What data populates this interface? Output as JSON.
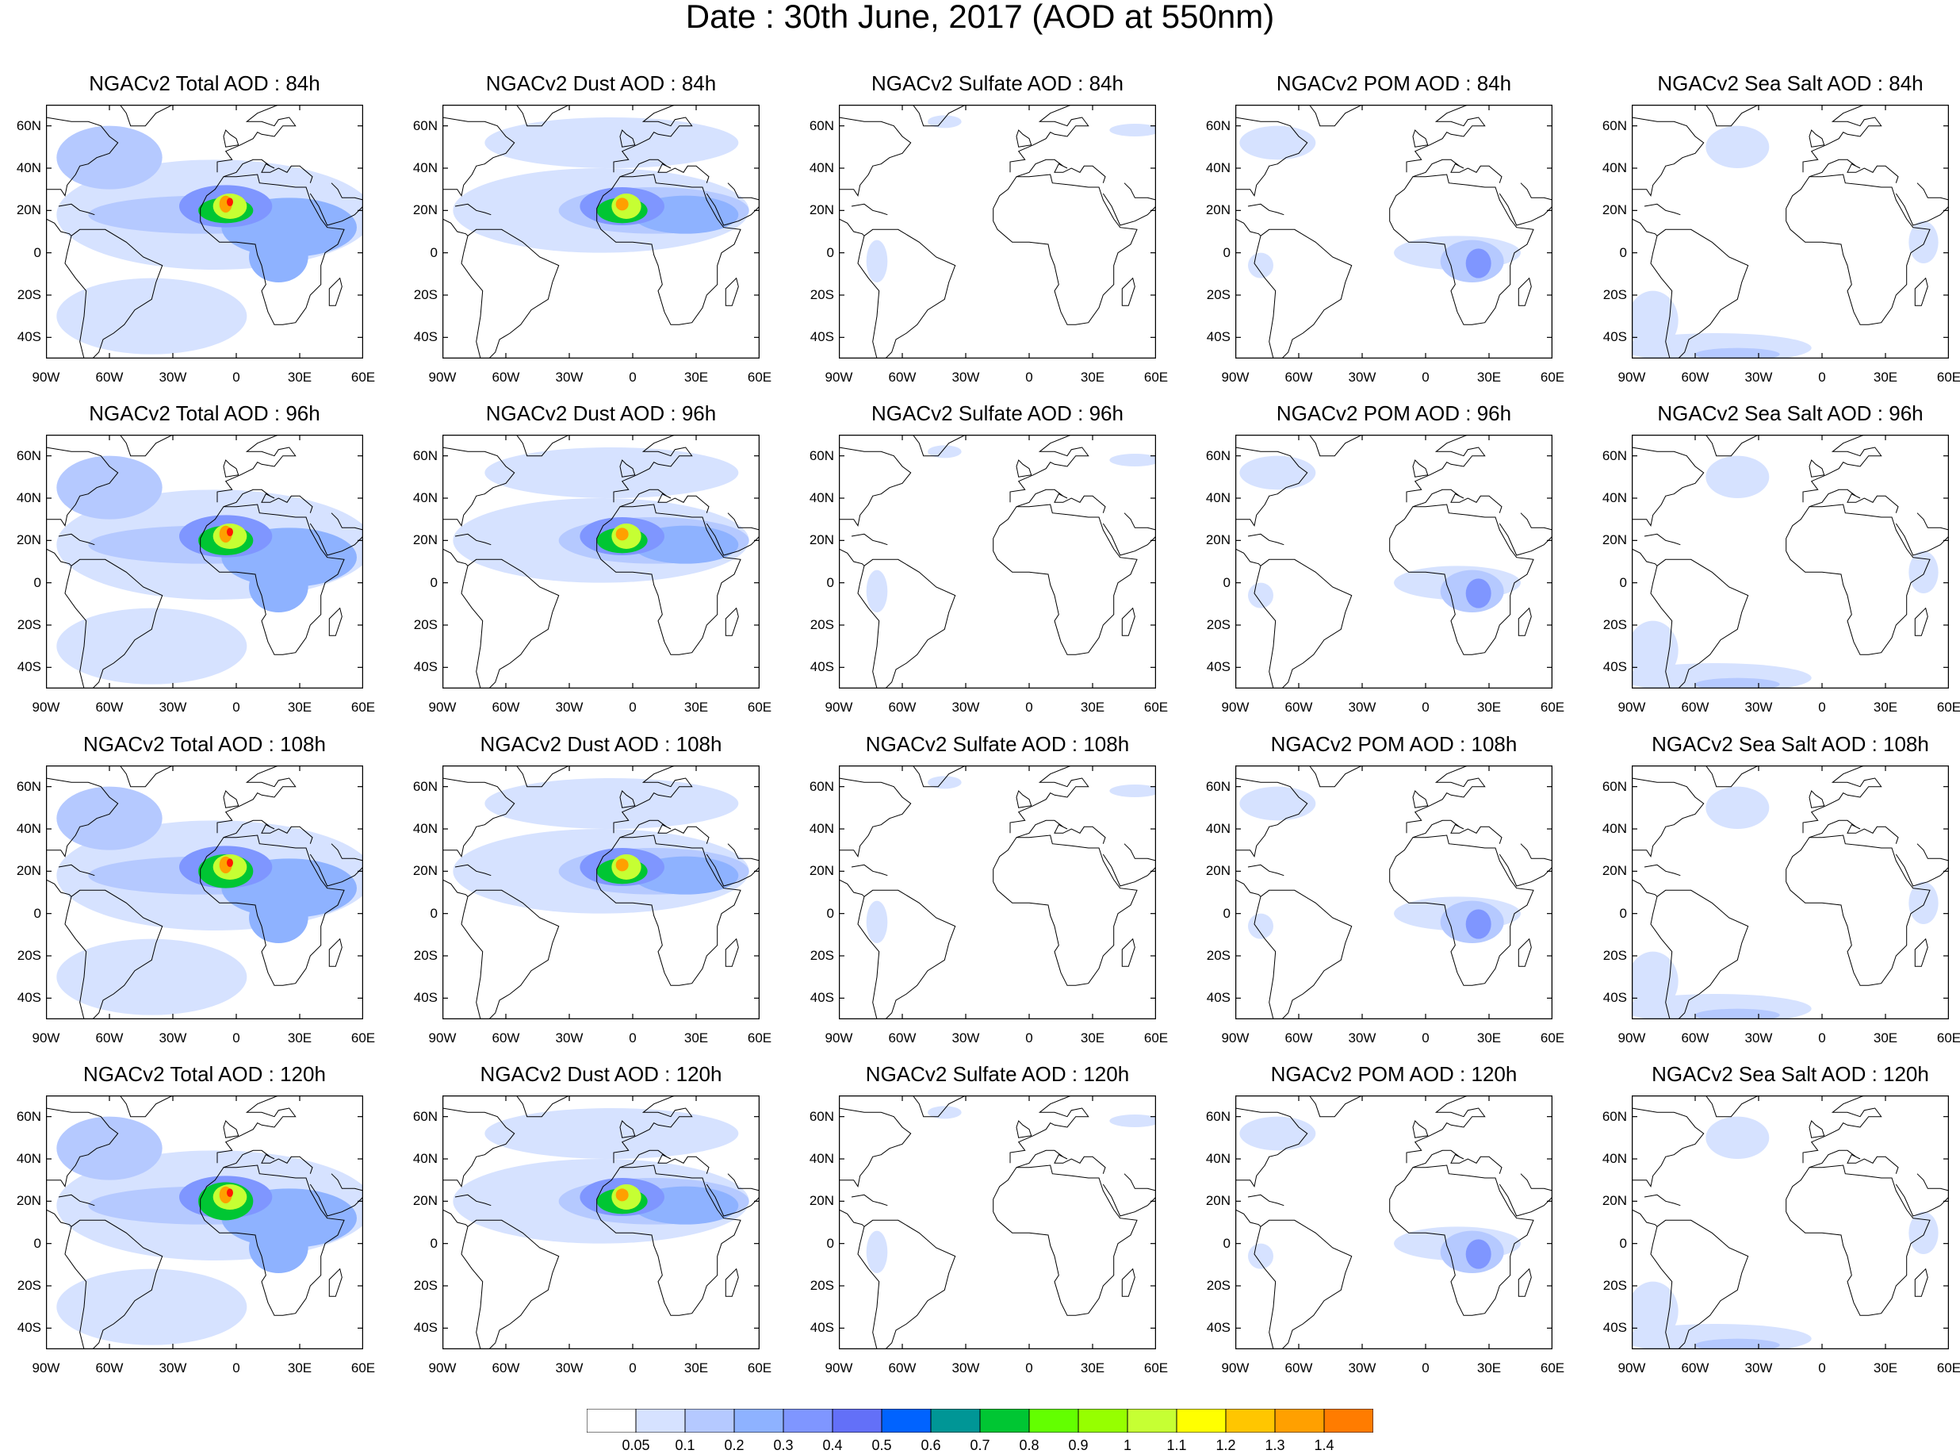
{
  "figure": {
    "title": "Date : 30th June, 2017 (AOD at 550nm)"
  },
  "rows": [
    {
      "lead": "84h",
      "titles": [
        "NGACv2 Total AOD : 84h",
        "NGACv2 Dust AOD : 84h",
        "NGACv2 Sulfate AOD : 84h",
        "NGACv2 POM AOD : 84h",
        "NGACv2 Sea Salt AOD : 84h"
      ]
    },
    {
      "lead": "96h",
      "titles": [
        "NGACv2 Total AOD : 96h",
        "NGACv2 Dust AOD : 96h",
        "NGACv2 Sulfate AOD : 96h",
        "NGACv2 POM AOD : 96h",
        "NGACv2 Sea Salt AOD : 96h"
      ]
    },
    {
      "lead": "108h",
      "titles": [
        "NGACv2 Total AOD : 108h",
        "NGACv2 Dust AOD : 108h",
        "NGACv2 Sulfate AOD : 108h",
        "NGACv2 POM AOD : 108h",
        "NGACv2 Sea Salt AOD : 108h"
      ]
    },
    {
      "lead": "120h",
      "titles": [
        "NGACv2 Total AOD : 120h",
        "NGACv2 Dust AOD : 120h",
        "NGACv2 Sulfate AOD : 120h",
        "NGACv2 POM AOD : 120h",
        "NGACv2 Sea Salt  AOD : 120h"
      ]
    }
  ],
  "columns": [
    "Total",
    "Dust",
    "Sulfate",
    "POM",
    "Sea Salt"
  ],
  "axes": {
    "lat_labels": [
      "60N",
      "40N",
      "20N",
      "0",
      "20S",
      "40S"
    ],
    "lon_labels": [
      "90W",
      "60W",
      "30W",
      "0",
      "30E",
      "60E"
    ],
    "lat_range": [
      -50,
      70
    ],
    "lon_range": [
      -90,
      60
    ]
  },
  "colorbar": {
    "labels": [
      "0.05",
      "0.1",
      "0.2",
      "0.3",
      "0.4",
      "0.5",
      "0.6",
      "0.7",
      "0.8",
      "0.9",
      "1",
      "1.1",
      "1.2",
      "1.3",
      "1.4"
    ],
    "colors": [
      "#ffffff",
      "#d6e2ff",
      "#b5c9ff",
      "#8eb2ff",
      "#7f96ff",
      "#6370f8",
      "#0063ff",
      "#009696",
      "#00c633",
      "#63ff00",
      "#96ff00",
      "#c6ff33",
      "#ffff00",
      "#ffc600",
      "#ffa000",
      "#ff7c00",
      "#ff1900"
    ]
  }
}
